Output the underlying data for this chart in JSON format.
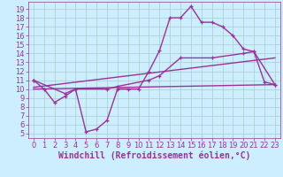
{
  "background_color": "#cceeff",
  "grid_color": "#aacccc",
  "line_color": "#993399",
  "marker": "+",
  "xlabel": "Windchill (Refroidissement éolien,°C)",
  "ylabel_ticks": [
    5,
    6,
    7,
    8,
    9,
    10,
    11,
    12,
    13,
    14,
    15,
    16,
    17,
    18,
    19
  ],
  "xlabel_ticks": [
    0,
    1,
    2,
    3,
    4,
    5,
    6,
    7,
    8,
    9,
    10,
    11,
    12,
    13,
    14,
    15,
    16,
    17,
    18,
    19,
    20,
    21,
    22,
    23
  ],
  "ylim": [
    4.5,
    19.8
  ],
  "xlim": [
    -0.5,
    23.5
  ],
  "series1_x": [
    0,
    1,
    2,
    3,
    4,
    5,
    6,
    7,
    8,
    9,
    10,
    11,
    12,
    13,
    14,
    15,
    16,
    17,
    18,
    19,
    20,
    21,
    22,
    23
  ],
  "series1_y": [
    11,
    10,
    8.5,
    9.2,
    10,
    5.2,
    5.5,
    6.5,
    10,
    10,
    10,
    12,
    14.3,
    18,
    18,
    19.3,
    17.5,
    17.5,
    17,
    16,
    14.5,
    14.2,
    10.8,
    10.5
  ],
  "series2_x": [
    0,
    3,
    4,
    7,
    8,
    11,
    12,
    14,
    17,
    20,
    21,
    23
  ],
  "series2_y": [
    11,
    9.5,
    10,
    10,
    10.3,
    11.0,
    11.5,
    13.5,
    13.5,
    14.0,
    14.2,
    10.5
  ],
  "series3_x": [
    0,
    23
  ],
  "series3_y": [
    10.2,
    13.5
  ],
  "series4_x": [
    0,
    23
  ],
  "series4_y": [
    10.0,
    10.5
  ],
  "tick_fontsize": 6,
  "xlabel_fontsize": 7,
  "linewidth": 1.0,
  "markersize": 3.5,
  "markeredgewidth": 0.9
}
